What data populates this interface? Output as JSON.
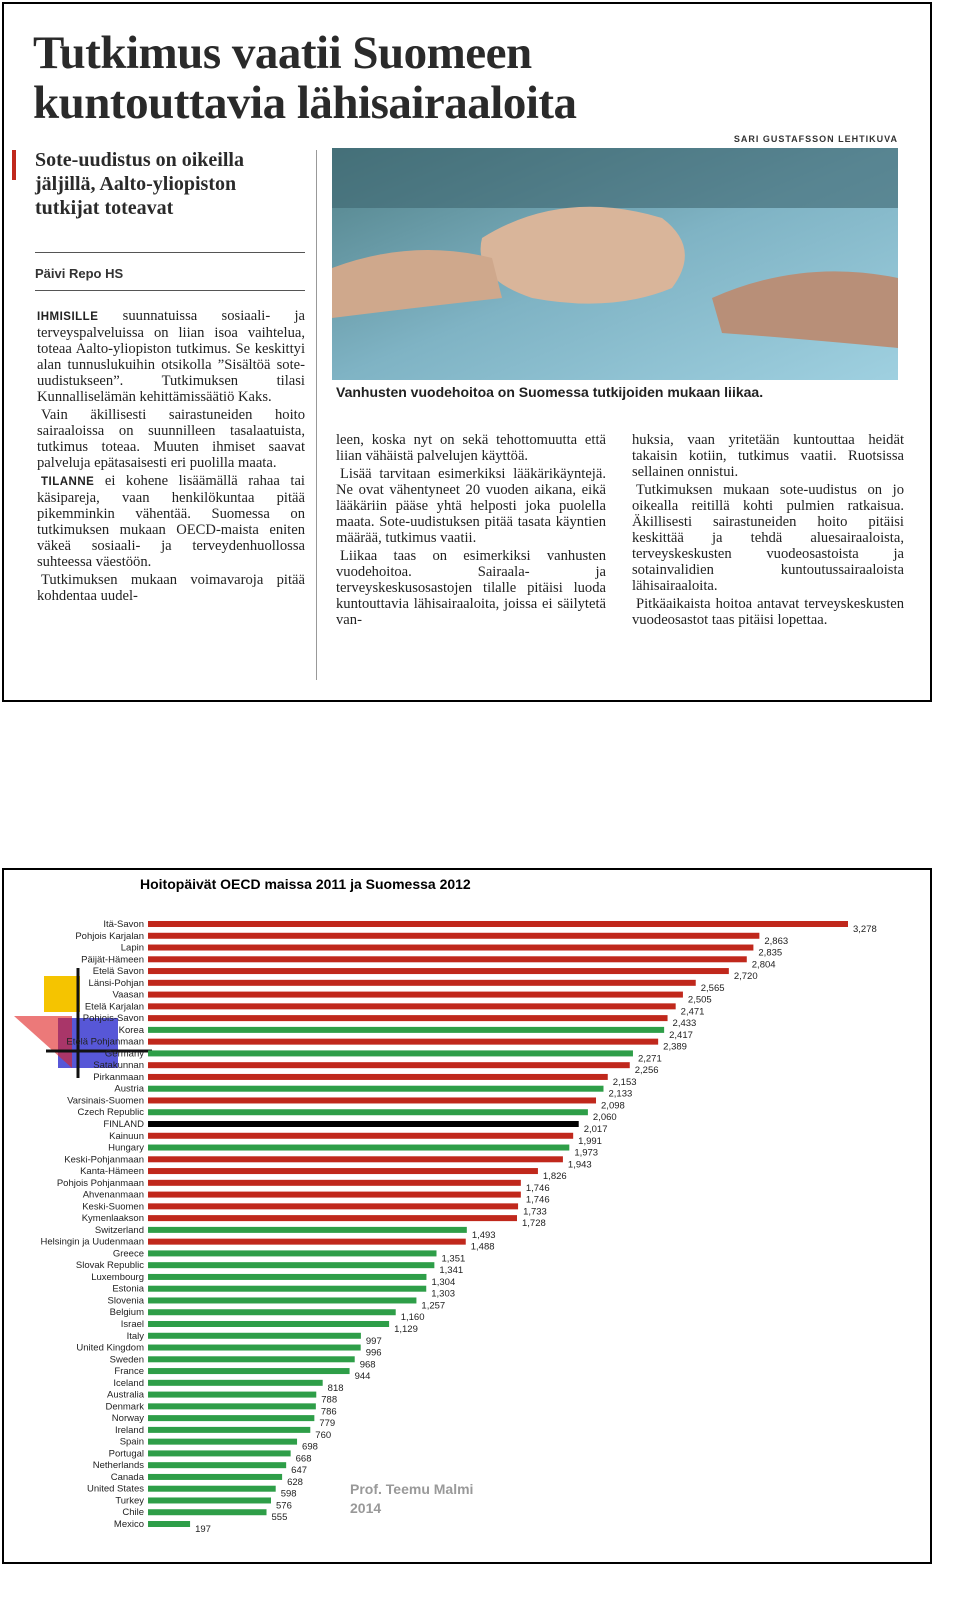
{
  "article": {
    "title": [
      "Tutkimus vaatii Suomeen",
      "kuntouttavia lähisairaaloita"
    ],
    "photo_credit": "SARI GUSTAFSSON LEHTIKUVA",
    "subheading": "Sote-uudistus on oikeilla jäljillä, Aalto-yliopiston tutkijat toteavat",
    "byline": "Päivi Repo HS",
    "caption": "Vanhusten vuodehoitoa on Suomessa tutkijoiden mukaan liikaa.",
    "columns": [
      [
        {
          "lead": "IHMISILLE",
          "text": "suunnatuissa sosiaali- ja terveyspalveluissa on liian isoa vaihtelua, toteaa Aalto-yliopiston tutkimus. Se keskittyi alan tunnuslukuihin otsikolla ”Sisältöä sote-uudistukseen”. Tutkimuksen tilasi Kunnalliselämän kehittämissäätiö Kaks."
        },
        {
          "lead": "",
          "text": "Vain äkillisesti sairastuneiden hoito sairaaloissa on suunnilleen tasalaatuista, tutkimus toteaa. Muuten ihmiset saavat palveluja epätasaisesti eri puolilla maata."
        },
        {
          "lead": "TILANNE",
          "text": "ei kohene lisäämällä rahaa tai käsipareja, vaan henkilökuntaa pitää pikemminkin vähentää. Suomessa on tutkimuksen mukaan OECD-maista eniten väkeä sosiaali- ja terveydenhuollossa suhteessa väestöön."
        },
        {
          "lead": "",
          "text": "Tutkimuksen mukaan voimavaroja pitää kohdentaa uudel-"
        }
      ],
      [
        {
          "lead": "",
          "text": "leen, koska nyt on sekä tehottomuutta että liian vähäistä palvelujen käyttöä."
        },
        {
          "lead": "",
          "text": "Lisää tarvitaan esimerkiksi lääkärikäyntejä. Ne ovat vähentyneet 20 vuoden aikana, eikä lääkäriin pääse yhtä helposti joka puolella maata. Sote-uudistuksen pitää tasata käyntien määrää, tutkimus vaatii."
        },
        {
          "lead": "",
          "text": "Liikaa taas on esimerkiksi vanhusten vuodehoitoa. Sairaala- ja terveyskeskusosastojen tilalle pitäisi luoda kuntouttavia lähisairaaloita, joissa ei säilytetä van-"
        }
      ],
      [
        {
          "lead": "",
          "text": "huksia, vaan yritetään kuntouttaa heidät takaisin kotiin, tutkimus vaatii. Ruotsissa sellainen onnistui."
        },
        {
          "lead": "",
          "text": "Tutkimuksen mukaan sote-uudistus on jo oikealla reitillä kohti pulmien ratkaisua. Äkillisesti sairastuneiden hoito pitäisi keskittää ja tehdä aluesairaaloista, terveyskeskusten vuodeosastoista ja sotainvalidien kuntoutussairaaloista lähisairaaloita."
        },
        {
          "lead": "",
          "text": "Pitkäaikaista hoitoa antavat terveyskeskusten vuodeosastot taas pitäisi lopettaa."
        }
      ]
    ]
  },
  "chart_data": {
    "type": "hbar",
    "title": "Hoitopäivät OECD maissa 2011  ja Suomessa 2012",
    "annotation": [
      "Prof. Teemu Malmi",
      "2014"
    ],
    "categories": [
      "Itä-Savon",
      "Pohjois Karjalan",
      "Lapin",
      "Päijät-Hämeen",
      "Etelä Savon",
      "Länsi-Pohjan",
      "Vaasan",
      "Etelä Karjalan",
      "Pohjois-Savon",
      "Korea",
      "Etelä Pohjanmaan",
      "Germany",
      "Satakunnan",
      "Pirkanmaan",
      "Austria",
      "Varsinais-Suomen",
      "Czech Republic",
      "FINLAND",
      "Kainuun",
      "Hungary",
      "Keski-Pohjanmaan",
      "Kanta-Hämeen",
      "Pohjois Pohjanmaan",
      "Ahvenanmaan",
      "Keski-Suomen",
      "Kymenlaakson",
      "Switzerland",
      "Helsingin ja Uudenmaan",
      "Greece",
      "Slovak Republic",
      "Luxembourg",
      "Estonia",
      "Slovenia",
      "Belgium",
      "Israel",
      "Italy",
      "United Kingdom",
      "Sweden",
      "France",
      "Iceland",
      "Australia",
      "Denmark",
      "Norway",
      "Ireland",
      "Spain",
      "Portugal",
      "Netherlands",
      "Canada",
      "United States",
      "Turkey",
      "Chile",
      "Mexico"
    ],
    "values": [
      3278,
      2863,
      2835,
      2804,
      2720,
      2565,
      2505,
      2471,
      2433,
      2417,
      2389,
      2271,
      2256,
      2153,
      2133,
      2098,
      2060,
      2017,
      1991,
      1973,
      1943,
      1826,
      1746,
      1746,
      1733,
      1728,
      1493,
      1488,
      1351,
      1341,
      1304,
      1303,
      1257,
      1160,
      1129,
      997,
      996,
      968,
      944,
      818,
      788,
      786,
      779,
      760,
      698,
      668,
      647,
      628,
      598,
      576,
      555,
      197
    ],
    "value_labels": [
      "3,278",
      "2,863",
      "2,835",
      "2,804",
      "2,720",
      "2,565",
      "2,505",
      "2,471",
      "2,433",
      "2,417",
      "2,389",
      "2,271",
      "2,256",
      "2,153",
      "2,133",
      "2,098",
      "2,060",
      "2,017",
      "1,991",
      "1,973",
      "1,943",
      "1,826",
      "1,746",
      "1,746",
      "1,733",
      "1,728",
      "1,493",
      "1,488",
      "1,351",
      "1,341",
      "1,304",
      "1,303",
      "1,257",
      "1,160",
      "1,129",
      "997",
      "996",
      "968",
      "944",
      "818",
      "788",
      "786",
      "779",
      "760",
      "698",
      "668",
      "647",
      "628",
      "598",
      "576",
      "555",
      "197"
    ],
    "colors": [
      "#c0281c",
      "#c0281c",
      "#c0281c",
      "#c0281c",
      "#c0281c",
      "#c0281c",
      "#c0281c",
      "#c0281c",
      "#c0281c",
      "#2e9e48",
      "#c0281c",
      "#2e9e48",
      "#c0281c",
      "#c0281c",
      "#2e9e48",
      "#c0281c",
      "#2e9e48",
      "#000000",
      "#c0281c",
      "#2e9e48",
      "#c0281c",
      "#c0281c",
      "#c0281c",
      "#c0281c",
      "#c0281c",
      "#c0281c",
      "#2e9e48",
      "#c0281c",
      "#2e9e48",
      "#2e9e48",
      "#2e9e48",
      "#2e9e48",
      "#2e9e48",
      "#2e9e48",
      "#2e9e48",
      "#2e9e48",
      "#2e9e48",
      "#2e9e48",
      "#2e9e48",
      "#2e9e48",
      "#2e9e48",
      "#2e9e48",
      "#2e9e48",
      "#2e9e48",
      "#2e9e48",
      "#2e9e48",
      "#2e9e48",
      "#2e9e48",
      "#2e9e48",
      "#2e9e48",
      "#2e9e48",
      "#2e9e48"
    ]
  }
}
